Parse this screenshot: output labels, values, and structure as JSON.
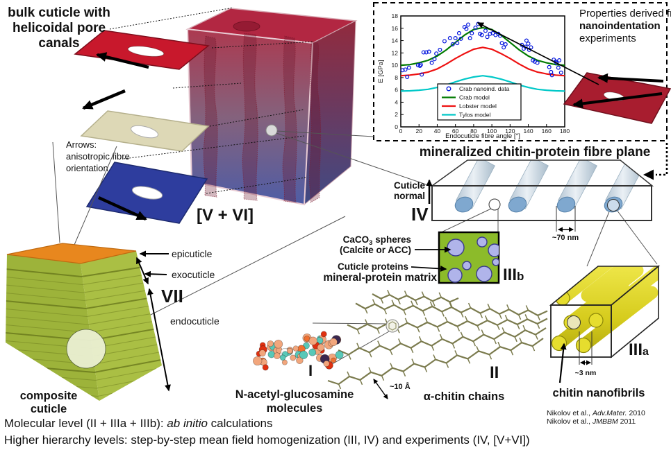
{
  "palette": {
    "accent_blue": "#2a5ae0",
    "red_plate": "#c8182c",
    "dark_red_plate": "#a81d2f",
    "cream_plate": "#ddd8b6",
    "blue_plate": "#2e3d9e",
    "cuticle_green": "#a9be3e",
    "epicuticle_orange": "#e8871e",
    "matrix_green": "#8cbb2a",
    "sphere_lavender": "#b0b4ea",
    "fibre_blue": "#7fa8cf",
    "nanofibril_yellow": "#ded41f"
  },
  "labels": {
    "bulk_cuticle": [
      "bulk cuticle with",
      "helicoidal pore",
      "canals"
    ],
    "arrows_note": [
      "Arrows:",
      "anisotropic fibre",
      "orientation"
    ],
    "v_vi": "[V + VI]",
    "properties": [
      "Properties derived from",
      "nanoindentation",
      "experiments"
    ],
    "fibre_plane": "mineralized chitin-protein fibre plane",
    "cuticle_normal": [
      "Cuticle",
      "normal"
    ],
    "roman_iv": "IV",
    "nm70": "~70 nm",
    "caco3_pre": "CaCO",
    "caco3_sub": "3",
    "caco3_post": " spheres",
    "calcite": "(Calcite or ACC)",
    "cuticle_proteins": "Cuticle proteins",
    "mineral_matrix": "mineral-protein matrix",
    "iiib_main": "III",
    "iiib_sub": "b",
    "iiia_main": "III",
    "iiia_sub": "a",
    "nm3": "~3 nm",
    "chitin_nanofibrils": "chitin nanofibrils",
    "roman_ii": "II",
    "angstrom10": "~10 Å",
    "alpha_chitin": "α-chitin chains",
    "roman_i": "I",
    "nacetyl": [
      "N-acetyl-glucosamine",
      "molecules"
    ],
    "epicuticle": "epicuticle",
    "exocuticle": "exocuticle",
    "endocuticle": "endocuticle",
    "roman_vii": "VII",
    "composite": [
      "composite",
      "cuticle"
    ],
    "ref1_pre": "Nikolov et al., ",
    "ref1_journal": "Adv.Mater.",
    "ref1_year": " 2010",
    "ref2_pre": "Nikolov et al., ",
    "ref2_journal": "JMBBM",
    "ref2_year": " 2011",
    "bottom1_pre": "Molecular level (II + IIIa + IIIb):  ",
    "bottom1_italic": "ab initio",
    "bottom1_post": " calculations",
    "bottom2": "Higher hierarchy levels: step-by-step mean field homogenization (III, IV) and experiments (IV, [V+VI])"
  },
  "chart_data": {
    "type": "line+scatter",
    "title": "",
    "xlabel": "Endocuticle fibre angle [°]",
    "ylabel": "E [GPa]",
    "xlim": [
      0,
      180
    ],
    "ylim": [
      0,
      18
    ],
    "xticks": [
      0,
      20,
      40,
      60,
      80,
      100,
      120,
      140,
      160,
      180
    ],
    "yticks": [
      0,
      2,
      4,
      6,
      8,
      10,
      12,
      14,
      16,
      18
    ],
    "grid": false,
    "legend_position": "lower-center",
    "angles": [
      0,
      10,
      20,
      30,
      40,
      50,
      60,
      70,
      80,
      90,
      100,
      110,
      120,
      130,
      140,
      150,
      160,
      170,
      180
    ],
    "series": [
      {
        "name": "Crab model",
        "color": "#007a00",
        "values": [
          10.0,
          10.1,
          10.4,
          10.8,
          11.5,
          12.5,
          13.7,
          14.9,
          15.8,
          16.1,
          15.8,
          14.9,
          13.7,
          12.5,
          11.5,
          10.8,
          10.4,
          10.1,
          10.0
        ]
      },
      {
        "name": "Lobster model",
        "color": "#ee1111",
        "values": [
          8.3,
          8.4,
          8.6,
          8.9,
          9.4,
          10.2,
          11.1,
          11.9,
          12.6,
          12.9,
          12.6,
          11.9,
          11.1,
          10.2,
          9.4,
          8.9,
          8.6,
          8.4,
          8.3
        ]
      },
      {
        "name": "Tylos model",
        "color": "#00c8c8",
        "values": [
          5.8,
          5.85,
          5.95,
          6.1,
          6.4,
          6.8,
          7.3,
          7.75,
          8.1,
          8.3,
          8.1,
          7.75,
          7.3,
          6.8,
          6.4,
          6.1,
          5.95,
          5.85,
          5.8
        ]
      }
    ],
    "scatter": {
      "name": "Crab nanoind. data",
      "color": "#0013dd",
      "points": [
        [
          2,
          9.2
        ],
        [
          5,
          9.3
        ],
        [
          7,
          8.1
        ],
        [
          9,
          9.6
        ],
        [
          19,
          10.0
        ],
        [
          21,
          9.9
        ],
        [
          22,
          10.1
        ],
        [
          23,
          8.5
        ],
        [
          25,
          12.1
        ],
        [
          28,
          12.1
        ],
        [
          31,
          12.2
        ],
        [
          34,
          10.4
        ],
        [
          37,
          11.0
        ],
        [
          39,
          11.9
        ],
        [
          43,
          12.5
        ],
        [
          48,
          13.9
        ],
        [
          54,
          14.4
        ],
        [
          57,
          13.4
        ],
        [
          60,
          14.4
        ],
        [
          62,
          13.6
        ],
        [
          64,
          15.2
        ],
        [
          66,
          14.3
        ],
        [
          70,
          16.2
        ],
        [
          72,
          15.9
        ],
        [
          74,
          16.6
        ],
        [
          76,
          14.4
        ],
        [
          78,
          15.2
        ],
        [
          82,
          16.1
        ],
        [
          85,
          16.7
        ],
        [
          87,
          15.1
        ],
        [
          89,
          14.9
        ],
        [
          93,
          15.6
        ],
        [
          95,
          14.6
        ],
        [
          98,
          15.1
        ],
        [
          101,
          15.2
        ],
        [
          104,
          14.9
        ],
        [
          107,
          15.1
        ],
        [
          109,
          14.8
        ],
        [
          111,
          13.6
        ],
        [
          113,
          12.9
        ],
        [
          115,
          13.4
        ],
        [
          133,
          13.3
        ],
        [
          135,
          12.7
        ],
        [
          137,
          13.0
        ],
        [
          138,
          14.0
        ],
        [
          140,
          13.5
        ],
        [
          141,
          12.5
        ],
        [
          143,
          12.9
        ],
        [
          145,
          10.8
        ],
        [
          147,
          10.6
        ],
        [
          150,
          10.4
        ],
        [
          163,
          9.7
        ],
        [
          165,
          8.9
        ],
        [
          166,
          8.4
        ],
        [
          168,
          10.9
        ],
        [
          170,
          10.6
        ],
        [
          171,
          10.4
        ],
        [
          173,
          9.6
        ],
        [
          174,
          10.8
        ],
        [
          176,
          8.8
        ]
      ]
    }
  }
}
